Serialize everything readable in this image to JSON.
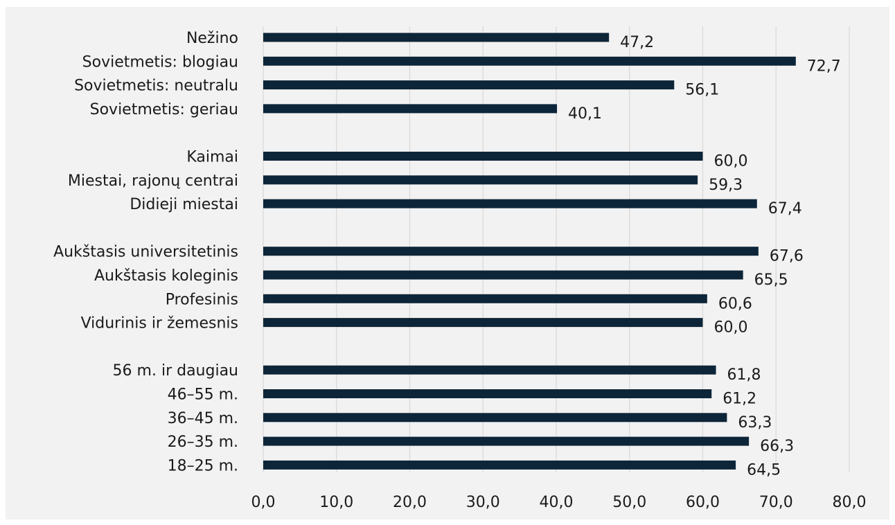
{
  "chart_data": {
    "type": "bar",
    "orientation": "horizontal",
    "title": "",
    "xlabel": "",
    "ylabel": "",
    "xlim": [
      0,
      80
    ],
    "grid": true,
    "bar_color": "#0d2538",
    "gridline_color": "#d9d9d9",
    "background_color": "#f2f2f2",
    "x_ticks": [
      "0,0",
      "10,0",
      "20,0",
      "30,0",
      "40,0",
      "50,0",
      "60,0",
      "70,0",
      "80,0"
    ],
    "groups": [
      {
        "categories": [
          "Nežino",
          "Sovietmetis: blogiau",
          "Sovietmetis: neutralu",
          "Sovietmetis: geriau"
        ],
        "values": [
          47.2,
          72.7,
          56.1,
          40.1
        ],
        "labels": [
          "47,2",
          "72,7",
          "56,1",
          "40,1"
        ]
      },
      {
        "categories": [
          "Kaimai",
          "Miestai, rajonų centrai",
          "Didieji miestai"
        ],
        "values": [
          60.0,
          59.3,
          67.4
        ],
        "labels": [
          "60,0",
          "59,3",
          "67,4"
        ]
      },
      {
        "categories": [
          "Aukštasis universitetinis",
          "Aukštasis koleginis",
          "Profesinis",
          "Vidurinis ir žemesnis"
        ],
        "values": [
          67.6,
          65.5,
          60.6,
          60.0
        ],
        "labels": [
          "67,6",
          "65,5",
          "60,6",
          "60,0"
        ]
      },
      {
        "categories": [
          "56 m. ir daugiau",
          "46–55 m.",
          "36–45 m.",
          "26–35 m.",
          "18–25 m."
        ],
        "values": [
          61.8,
          61.2,
          63.3,
          66.3,
          64.5
        ],
        "labels": [
          "61,8",
          "61,2",
          "63,3",
          "66,3",
          "64,5"
        ]
      }
    ]
  }
}
